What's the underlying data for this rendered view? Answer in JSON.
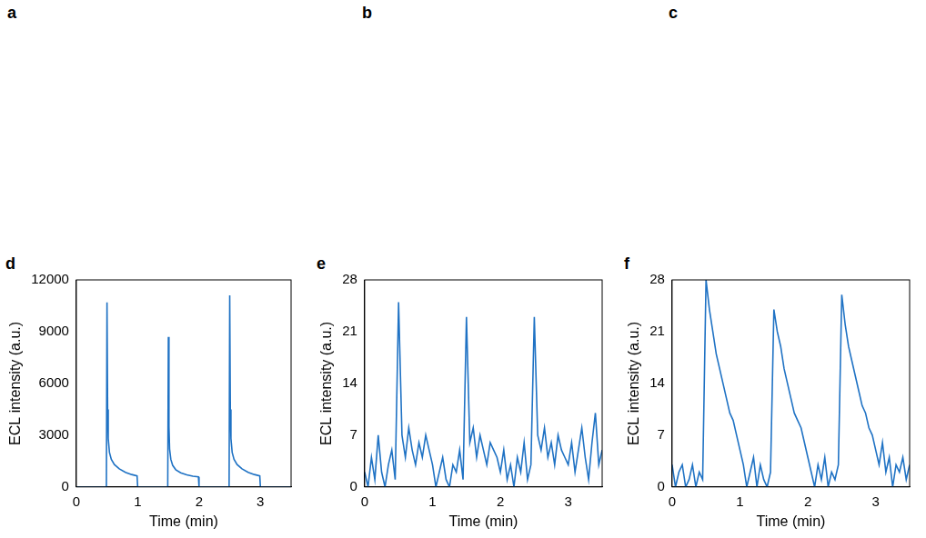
{
  "photos": [
    {
      "panel": "a"
    },
    {
      "panel": "b"
    },
    {
      "panel": "c"
    }
  ],
  "chart_data": [
    {
      "panel": "d",
      "type": "line",
      "x_label": "Time (min)",
      "y_label": "ECL intensity (a.u.)",
      "x": [
        0,
        0.49,
        0.5,
        0.51,
        0.52,
        0.54,
        0.57,
        0.62,
        0.7,
        0.8,
        0.9,
        0.99,
        1.0,
        1.49,
        1.5,
        1.51,
        1.52,
        1.54,
        1.57,
        1.62,
        1.7,
        1.8,
        1.9,
        1.99,
        2.0,
        2.49,
        2.5,
        2.51,
        2.52,
        2.54,
        2.57,
        2.62,
        2.7,
        2.8,
        2.9,
        2.99,
        3.0,
        3.5
      ],
      "series": [
        {
          "color": "#1f72c4",
          "values": [
            0,
            0,
            10700,
            4500,
            2800,
            2000,
            1600,
            1300,
            1050,
            850,
            720,
            640,
            0,
            0,
            8700,
            3500,
            2200,
            1600,
            1250,
            1000,
            820,
            700,
            620,
            580,
            0,
            0,
            11100,
            4500,
            2800,
            2000,
            1600,
            1300,
            1050,
            850,
            720,
            640,
            0,
            0
          ]
        }
      ],
      "xlim": [
        0,
        3.5
      ],
      "xticks": [
        0,
        1,
        2,
        3
      ],
      "ylim": [
        0,
        12000
      ],
      "yticks": [
        0,
        3000,
        6000,
        9000,
        12000
      ],
      "grid": false
    },
    {
      "panel": "e",
      "type": "line",
      "x_label": "Time (min)",
      "y_label": "ECL intensity (a.u.)",
      "x": [
        0,
        0.05,
        0.1,
        0.15,
        0.2,
        0.25,
        0.3,
        0.35,
        0.4,
        0.45,
        0.5,
        0.55,
        0.6,
        0.65,
        0.7,
        0.75,
        0.8,
        0.85,
        0.9,
        0.95,
        1.0,
        1.05,
        1.1,
        1.15,
        1.2,
        1.25,
        1.3,
        1.35,
        1.4,
        1.45,
        1.5,
        1.55,
        1.6,
        1.65,
        1.7,
        1.75,
        1.8,
        1.85,
        1.9,
        1.95,
        2.0,
        2.05,
        2.1,
        2.15,
        2.2,
        2.25,
        2.3,
        2.35,
        2.4,
        2.45,
        2.5,
        2.55,
        2.6,
        2.65,
        2.7,
        2.75,
        2.8,
        2.85,
        2.9,
        2.95,
        3.0,
        3.05,
        3.1,
        3.15,
        3.2,
        3.25,
        3.3,
        3.35,
        3.4,
        3.45,
        3.5
      ],
      "series": [
        {
          "color": "#1f72c4",
          "values": [
            2,
            0,
            4,
            1,
            7,
            2,
            0,
            3,
            5,
            1,
            25,
            7,
            4,
            8,
            5,
            3,
            6,
            4,
            7,
            5,
            3,
            0,
            2,
            4,
            1,
            0,
            3,
            2,
            5,
            1,
            23,
            6,
            8,
            4,
            7,
            5,
            3,
            6,
            5,
            4,
            2,
            5,
            1,
            3,
            0,
            4,
            2,
            6,
            1,
            3,
            23,
            7,
            5,
            8,
            4,
            6,
            3,
            7,
            5,
            4,
            3,
            6,
            2,
            5,
            8,
            4,
            1,
            6,
            10,
            3,
            5
          ]
        }
      ],
      "xlim": [
        0,
        3.5
      ],
      "xticks": [
        0,
        1,
        2,
        3
      ],
      "ylim": [
        0,
        28
      ],
      "yticks": [
        0,
        7,
        14,
        21,
        28
      ],
      "grid": false
    },
    {
      "panel": "f",
      "type": "line",
      "x_label": "Time (min)",
      "y_label": "ECL intensity (a.u.)",
      "x": [
        0,
        0.05,
        0.1,
        0.15,
        0.2,
        0.25,
        0.3,
        0.35,
        0.4,
        0.45,
        0.5,
        0.55,
        0.6,
        0.65,
        0.7,
        0.75,
        0.8,
        0.85,
        0.9,
        0.95,
        1.0,
        1.05,
        1.1,
        1.15,
        1.2,
        1.25,
        1.3,
        1.35,
        1.4,
        1.45,
        1.5,
        1.55,
        1.6,
        1.65,
        1.7,
        1.75,
        1.8,
        1.85,
        1.9,
        1.95,
        2.0,
        2.05,
        2.1,
        2.15,
        2.2,
        2.25,
        2.3,
        2.35,
        2.4,
        2.45,
        2.5,
        2.55,
        2.6,
        2.65,
        2.7,
        2.75,
        2.8,
        2.85,
        2.9,
        2.95,
        3.0,
        3.05,
        3.1,
        3.15,
        3.2,
        3.25,
        3.3,
        3.35,
        3.4,
        3.45,
        3.5
      ],
      "series": [
        {
          "color": "#1f72c4",
          "values": [
            3,
            0,
            2,
            3,
            0,
            1,
            3,
            0,
            2,
            1,
            28,
            24,
            21,
            18,
            16,
            14,
            12,
            10,
            9,
            7,
            5,
            3,
            0,
            2,
            4,
            0,
            3,
            1,
            0,
            2,
            24,
            21,
            19,
            16,
            14,
            12,
            10,
            9,
            8,
            6,
            4,
            2,
            0,
            3,
            1,
            4,
            0,
            2,
            1,
            3,
            26,
            22,
            19,
            17,
            15,
            13,
            11,
            10,
            8,
            7,
            5,
            3,
            6,
            2,
            4,
            0,
            3,
            2,
            4,
            1,
            3
          ]
        }
      ],
      "xlim": [
        0,
        3.5
      ],
      "xticks": [
        0,
        1,
        2,
        3
      ],
      "ylim": [
        0,
        28
      ],
      "yticks": [
        0,
        7,
        14,
        21,
        28
      ],
      "grid": false
    }
  ]
}
